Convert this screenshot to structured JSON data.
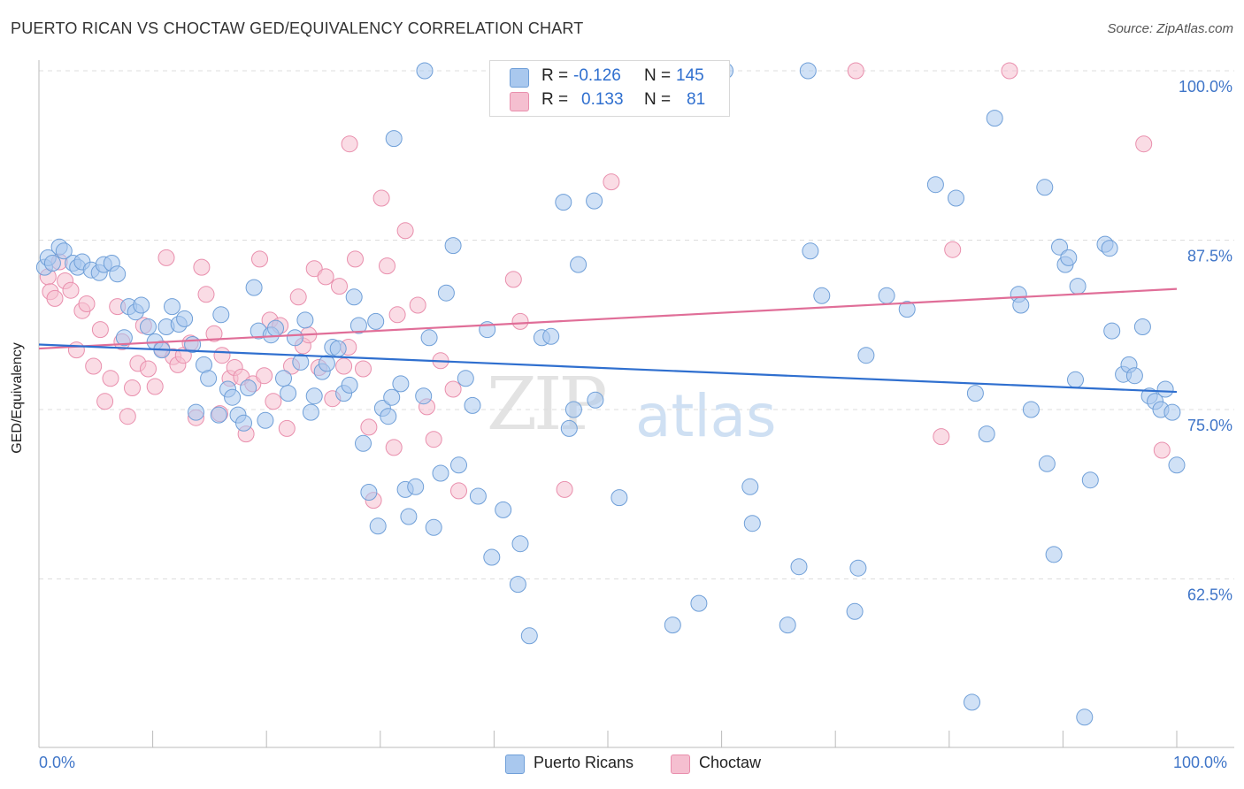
{
  "title": "PUERTO RICAN VS CHOCTAW GED/EQUIVALENCY CORRELATION CHART",
  "source": "Source: ZipAtlas.com",
  "watermark": {
    "zip": "ZIP",
    "atlas": "atlas"
  },
  "colors": {
    "blue_fill": "#a9c8ee",
    "blue_stroke": "#6f9fd8",
    "blue_line": "#2f6fcf",
    "pink_fill": "#f5bfd0",
    "pink_stroke": "#e98fad",
    "pink_line": "#e06e98",
    "grid": "#dddddd",
    "axis_text": "#3f75c8"
  },
  "legend": {
    "rows": [
      {
        "r_label": "R =",
        "r_value": "-0.126",
        "n_label": "N =",
        "n_value": "145"
      },
      {
        "r_label": "R =",
        "r_value": "0.133",
        "n_label": "N =",
        "n_value": "81"
      }
    ]
  },
  "bottom_legend": {
    "blue": "Puerto Ricans",
    "pink": "Choctaw"
  },
  "x_axis": {
    "min_label": "0.0%",
    "max_label": "100.0%"
  },
  "chart_data": {
    "type": "scatter",
    "title": "PUERTO RICAN VS CHOCTAW GED/EQUIVALENCY CORRELATION CHART",
    "xlabel": "",
    "ylabel": "GED/Equivalency",
    "xlim": [
      0,
      100
    ],
    "ylim": [
      49,
      100
    ],
    "x_ticks": [
      "0.0%",
      "100.0%"
    ],
    "y_ticks": [
      {
        "value": 100.0,
        "label": "100.0%"
      },
      {
        "value": 87.5,
        "label": "87.5%"
      },
      {
        "value": 75.0,
        "label": "75.0%"
      },
      {
        "value": 62.5,
        "label": "62.5%"
      }
    ],
    "grid": true,
    "legend_position": "top-center",
    "series": [
      {
        "name": "Puerto Ricans",
        "color": "#a9c8ee",
        "r": -0.126,
        "n": 145,
        "trend": {
          "x": [
            0,
            100
          ],
          "y": [
            79.8,
            76.3
          ]
        },
        "points": [
          [
            0.5,
            85.5
          ],
          [
            0.8,
            86.2
          ],
          [
            1.2,
            85.8
          ],
          [
            1.8,
            87.0
          ],
          [
            2.2,
            86.7
          ],
          [
            3.0,
            85.8
          ],
          [
            3.4,
            85.5
          ],
          [
            3.8,
            85.9
          ],
          [
            4.6,
            85.3
          ],
          [
            5.3,
            85.1
          ],
          [
            5.7,
            85.7
          ],
          [
            6.4,
            85.8
          ],
          [
            6.9,
            85.0
          ],
          [
            7.5,
            80.3
          ],
          [
            7.9,
            82.6
          ],
          [
            8.5,
            82.2
          ],
          [
            9.0,
            82.7
          ],
          [
            9.6,
            81.1
          ],
          [
            10.2,
            80.0
          ],
          [
            10.8,
            79.4
          ],
          [
            11.2,
            81.1
          ],
          [
            11.7,
            82.6
          ],
          [
            12.3,
            81.3
          ],
          [
            12.8,
            81.7
          ],
          [
            13.5,
            79.8
          ],
          [
            13.8,
            74.8
          ],
          [
            14.5,
            78.3
          ],
          [
            14.9,
            77.3
          ],
          [
            15.8,
            74.6
          ],
          [
            16.0,
            82.0
          ],
          [
            16.6,
            76.5
          ],
          [
            17.0,
            75.9
          ],
          [
            17.5,
            74.6
          ],
          [
            18.0,
            74.0
          ],
          [
            18.4,
            76.6
          ],
          [
            18.9,
            84.0
          ],
          [
            19.3,
            80.8
          ],
          [
            19.9,
            74.2
          ],
          [
            20.4,
            80.5
          ],
          [
            20.8,
            81.0
          ],
          [
            21.5,
            77.3
          ],
          [
            21.9,
            76.2
          ],
          [
            22.5,
            80.3
          ],
          [
            23.0,
            78.5
          ],
          [
            23.4,
            81.6
          ],
          [
            23.9,
            74.8
          ],
          [
            24.2,
            76.0
          ],
          [
            24.9,
            77.8
          ],
          [
            25.3,
            78.4
          ],
          [
            25.8,
            79.6
          ],
          [
            26.3,
            79.5
          ],
          [
            26.8,
            76.2
          ],
          [
            27.3,
            76.8
          ],
          [
            27.7,
            83.3
          ],
          [
            28.1,
            81.2
          ],
          [
            28.5,
            72.5
          ],
          [
            29.0,
            68.9
          ],
          [
            29.6,
            81.5
          ],
          [
            29.8,
            66.4
          ],
          [
            30.2,
            75.1
          ],
          [
            30.7,
            74.5
          ],
          [
            31.0,
            75.9
          ],
          [
            31.8,
            76.9
          ],
          [
            32.2,
            69.1
          ],
          [
            32.5,
            67.1
          ],
          [
            33.1,
            69.3
          ],
          [
            33.8,
            76.0
          ],
          [
            34.3,
            80.3
          ],
          [
            34.7,
            66.3
          ],
          [
            35.3,
            70.3
          ],
          [
            35.8,
            83.6
          ],
          [
            36.4,
            87.1
          ],
          [
            36.9,
            70.9
          ],
          [
            37.5,
            77.3
          ],
          [
            38.1,
            75.3
          ],
          [
            38.6,
            68.6
          ],
          [
            39.4,
            80.9
          ],
          [
            39.8,
            64.1
          ],
          [
            40.8,
            67.6
          ],
          [
            42.1,
            62.1
          ],
          [
            42.3,
            65.1
          ],
          [
            43.1,
            58.3
          ],
          [
            44.2,
            80.3
          ],
          [
            45.0,
            80.4
          ],
          [
            46.1,
            90.3
          ],
          [
            46.6,
            73.6
          ],
          [
            47.0,
            75.0
          ],
          [
            47.4,
            85.7
          ],
          [
            48.8,
            90.4
          ],
          [
            48.9,
            75.7
          ],
          [
            51.0,
            68.5
          ],
          [
            55.7,
            59.1
          ],
          [
            58.0,
            60.7
          ],
          [
            62.5,
            69.3
          ],
          [
            62.7,
            66.6
          ],
          [
            65.8,
            59.1
          ],
          [
            66.8,
            63.4
          ],
          [
            67.8,
            86.7
          ],
          [
            68.8,
            83.4
          ],
          [
            71.7,
            60.1
          ],
          [
            72.0,
            63.3
          ],
          [
            72.7,
            79.0
          ],
          [
            74.5,
            83.4
          ],
          [
            76.3,
            82.4
          ],
          [
            78.8,
            91.6
          ],
          [
            80.6,
            90.6
          ],
          [
            82.0,
            53.4
          ],
          [
            82.3,
            76.2
          ],
          [
            83.3,
            73.2
          ],
          [
            84.0,
            96.5
          ],
          [
            86.1,
            83.5
          ],
          [
            86.3,
            82.7
          ],
          [
            87.2,
            75.0
          ],
          [
            88.4,
            91.4
          ],
          [
            88.6,
            71.0
          ],
          [
            89.2,
            64.3
          ],
          [
            89.7,
            87.0
          ],
          [
            90.2,
            85.7
          ],
          [
            90.5,
            86.2
          ],
          [
            91.3,
            84.1
          ],
          [
            91.1,
            77.2
          ],
          [
            91.9,
            52.3
          ],
          [
            92.4,
            69.8
          ],
          [
            93.7,
            87.2
          ],
          [
            94.1,
            86.9
          ],
          [
            94.3,
            80.8
          ],
          [
            95.3,
            77.6
          ],
          [
            95.8,
            78.3
          ],
          [
            96.3,
            77.5
          ],
          [
            97.0,
            81.1
          ],
          [
            97.6,
            76.0
          ],
          [
            98.1,
            75.6
          ],
          [
            98.6,
            75.0
          ],
          [
            99.0,
            76.5
          ],
          [
            99.6,
            74.8
          ],
          [
            100.0,
            70.9
          ],
          [
            33.9,
            100.0
          ],
          [
            53.5,
            100.0
          ],
          [
            53.8,
            100.0
          ],
          [
            59.8,
            100.0
          ],
          [
            60.0,
            100.0
          ],
          [
            60.3,
            100.0
          ],
          [
            67.6,
            100.0
          ],
          [
            31.2,
            95.0
          ]
        ]
      },
      {
        "name": "Choctaw",
        "color": "#f5bfd0",
        "r": 0.133,
        "n": 81,
        "trend": {
          "x": [
            0,
            100
          ],
          "y": [
            79.5,
            83.9
          ]
        },
        "points": [
          [
            0.8,
            84.8
          ],
          [
            1.0,
            83.7
          ],
          [
            1.4,
            83.2
          ],
          [
            1.8,
            85.9
          ],
          [
            2.3,
            84.5
          ],
          [
            2.8,
            83.8
          ],
          [
            3.3,
            79.4
          ],
          [
            3.8,
            82.3
          ],
          [
            4.2,
            82.8
          ],
          [
            4.8,
            78.2
          ],
          [
            5.4,
            80.9
          ],
          [
            5.8,
            75.6
          ],
          [
            6.3,
            77.3
          ],
          [
            6.9,
            82.6
          ],
          [
            7.3,
            80.0
          ],
          [
            7.8,
            74.5
          ],
          [
            8.2,
            76.6
          ],
          [
            8.7,
            78.4
          ],
          [
            9.2,
            81.2
          ],
          [
            9.6,
            78.0
          ],
          [
            10.2,
            76.7
          ],
          [
            10.8,
            79.5
          ],
          [
            11.2,
            86.2
          ],
          [
            11.8,
            78.9
          ],
          [
            12.2,
            78.3
          ],
          [
            12.7,
            79.0
          ],
          [
            13.3,
            79.9
          ],
          [
            13.8,
            74.4
          ],
          [
            14.3,
            85.5
          ],
          [
            14.7,
            83.5
          ],
          [
            15.4,
            80.6
          ],
          [
            15.9,
            74.7
          ],
          [
            16.1,
            79.0
          ],
          [
            16.8,
            77.3
          ],
          [
            17.2,
            78.1
          ],
          [
            17.8,
            77.4
          ],
          [
            18.2,
            73.2
          ],
          [
            18.8,
            76.9
          ],
          [
            19.4,
            86.1
          ],
          [
            19.8,
            77.5
          ],
          [
            20.3,
            81.6
          ],
          [
            20.6,
            75.6
          ],
          [
            21.2,
            81.2
          ],
          [
            21.8,
            73.6
          ],
          [
            22.2,
            78.2
          ],
          [
            22.8,
            83.3
          ],
          [
            23.2,
            79.7
          ],
          [
            23.7,
            80.5
          ],
          [
            24.2,
            85.4
          ],
          [
            24.6,
            78.1
          ],
          [
            25.2,
            84.8
          ],
          [
            25.8,
            75.8
          ],
          [
            26.4,
            84.1
          ],
          [
            26.8,
            78.2
          ],
          [
            27.2,
            79.6
          ],
          [
            27.8,
            86.1
          ],
          [
            28.5,
            78.0
          ],
          [
            29.0,
            73.7
          ],
          [
            29.4,
            68.3
          ],
          [
            30.1,
            90.6
          ],
          [
            30.6,
            85.6
          ],
          [
            31.2,
            72.2
          ],
          [
            31.5,
            82.0
          ],
          [
            32.2,
            88.2
          ],
          [
            33.3,
            82.7
          ],
          [
            34.1,
            75.2
          ],
          [
            34.7,
            72.8
          ],
          [
            35.3,
            78.6
          ],
          [
            36.4,
            76.5
          ],
          [
            36.9,
            69.0
          ],
          [
            41.7,
            84.6
          ],
          [
            42.3,
            81.5
          ],
          [
            46.2,
            69.1
          ],
          [
            50.3,
            91.8
          ],
          [
            71.8,
            100.0
          ],
          [
            79.3,
            73.0
          ],
          [
            80.3,
            86.8
          ],
          [
            85.3,
            100.0
          ],
          [
            97.1,
            94.6
          ],
          [
            98.7,
            72.0
          ],
          [
            27.3,
            94.6
          ]
        ]
      }
    ]
  }
}
